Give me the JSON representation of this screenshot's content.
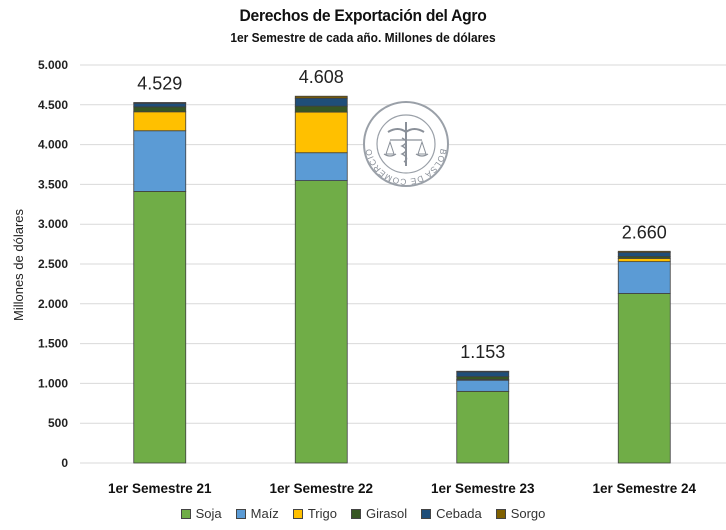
{
  "header": {
    "title": "Derechos de Exportación del Agro",
    "subtitle": "1er Semestre de cada año. Millones de dólares"
  },
  "watermark": {
    "text": "BOLSA DE COMERCIO DE ROSARIO",
    "icon": "caduceus-scales-seal-icon"
  },
  "chart_data": {
    "type": "bar",
    "stacked": true,
    "title": "Derechos de Exportación del Agro",
    "subtitle": "1er Semestre de cada año. Millones de dólares",
    "xlabel": "",
    "ylabel": "Millones de dólares",
    "ylim": [
      0,
      5000
    ],
    "yticks": [
      0,
      500,
      1000,
      1500,
      2000,
      2500,
      3000,
      3500,
      4000,
      4500,
      5000
    ],
    "ytick_labels": [
      "0",
      "500",
      "1.000",
      "1.500",
      "2.000",
      "2.500",
      "3.000",
      "3.500",
      "4.000",
      "4.500",
      "5.000"
    ],
    "grid": true,
    "legend_position": "bottom",
    "categories": [
      "1er Semestre 21",
      "1er Semestre 22",
      "1er Semestre 23",
      "1er Semestre 24"
    ],
    "totals": [
      4529,
      4608,
      1153,
      2660
    ],
    "total_labels": [
      "4.529",
      "4.608",
      "1.153",
      "2.660"
    ],
    "series": [
      {
        "name": "Soja",
        "color": "#70AD47",
        "values": [
          3412,
          3548,
          900,
          2130
        ]
      },
      {
        "name": "Maíz",
        "color": "#5B9BD5",
        "values": [
          762,
          350,
          140,
          400
        ]
      },
      {
        "name": "Trigo",
        "color": "#FFC000",
        "values": [
          238,
          510,
          10,
          40
        ]
      },
      {
        "name": "Girasol",
        "color": "#375623",
        "values": [
          62,
          75,
          35,
          25
        ]
      },
      {
        "name": "Cebada",
        "color": "#1F4E79",
        "values": [
          45,
          100,
          60,
          50
        ]
      },
      {
        "name": "Sorgo",
        "color": "#7F6000",
        "values": [
          10,
          25,
          8,
          15
        ]
      }
    ]
  }
}
